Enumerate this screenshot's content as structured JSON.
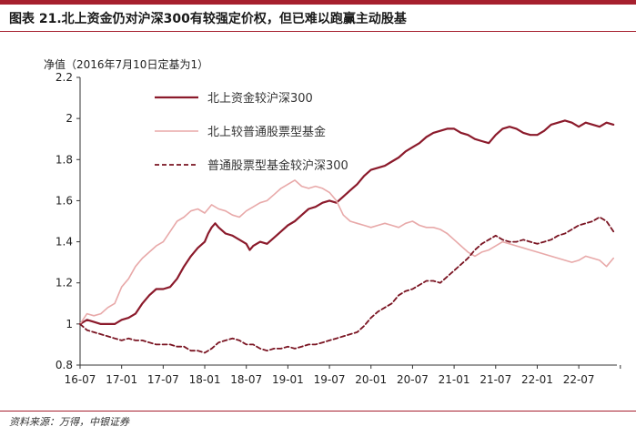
{
  "figure": {
    "title": "图表 21.北上资金仍对沪深300有较强定价权，但已难以跑赢主动股基",
    "source": "资料来源：万得，中银证券"
  },
  "colors": {
    "accent": "#a6202e",
    "series_main": "#8b1a2b",
    "series_fund": "#e8a9a9",
    "series_dashed": "#7a1422"
  },
  "chart_data": {
    "type": "line",
    "ylabel": "净值（2016年7月10日定基为1）",
    "ylim": [
      0.8,
      2.2
    ],
    "yticks": [
      0.8,
      1,
      1.2,
      1.4,
      1.6,
      1.8,
      2,
      2.2
    ],
    "ytick_labels": [
      "0.8",
      "1",
      "1.2",
      "1.4",
      "1.6",
      "1.8",
      "2",
      "2.2"
    ],
    "x_months": [
      0,
      6,
      12,
      18,
      24,
      30,
      36,
      42,
      48,
      54,
      60,
      66,
      72,
      78
    ],
    "xtick_labels": [
      "16-07",
      "17-01",
      "17-07",
      "18-01",
      "18-07",
      "19-01",
      "19-07",
      "20-01",
      "20-07",
      "21-01",
      "21-07",
      "22-01",
      "22-07"
    ],
    "xtick_months": [
      0,
      6,
      12,
      18,
      24,
      30,
      36,
      42,
      48,
      54,
      60,
      66,
      72
    ],
    "xlim_months": [
      0,
      77.5
    ],
    "legend_placement": "top-left",
    "series": [
      {
        "name": "北上资金较沪深300",
        "style": "solid",
        "points": [
          [
            0,
            1.0
          ],
          [
            1,
            1.02
          ],
          [
            2,
            1.01
          ],
          [
            3,
            1.0
          ],
          [
            4,
            1.0
          ],
          [
            5,
            1.0
          ],
          [
            6,
            1.02
          ],
          [
            7,
            1.03
          ],
          [
            8,
            1.05
          ],
          [
            9,
            1.1
          ],
          [
            10,
            1.14
          ],
          [
            11,
            1.17
          ],
          [
            12,
            1.17
          ],
          [
            13,
            1.18
          ],
          [
            14,
            1.22
          ],
          [
            15,
            1.28
          ],
          [
            16,
            1.33
          ],
          [
            17,
            1.37
          ],
          [
            18,
            1.4
          ],
          [
            18.5,
            1.44
          ],
          [
            19,
            1.47
          ],
          [
            19.5,
            1.49
          ],
          [
            20,
            1.47
          ],
          [
            21,
            1.44
          ],
          [
            22,
            1.43
          ],
          [
            23,
            1.41
          ],
          [
            24,
            1.39
          ],
          [
            24.5,
            1.36
          ],
          [
            25,
            1.38
          ],
          [
            26,
            1.4
          ],
          [
            27,
            1.39
          ],
          [
            28,
            1.42
          ],
          [
            29,
            1.45
          ],
          [
            30,
            1.48
          ],
          [
            31,
            1.5
          ],
          [
            32,
            1.53
          ],
          [
            33,
            1.56
          ],
          [
            34,
            1.57
          ],
          [
            35,
            1.59
          ],
          [
            36,
            1.6
          ],
          [
            37,
            1.59
          ],
          [
            38,
            1.62
          ],
          [
            39,
            1.65
          ],
          [
            40,
            1.68
          ],
          [
            41,
            1.72
          ],
          [
            42,
            1.75
          ],
          [
            43,
            1.76
          ],
          [
            44,
            1.77
          ],
          [
            45,
            1.79
          ],
          [
            46,
            1.81
          ],
          [
            47,
            1.84
          ],
          [
            48,
            1.86
          ],
          [
            49,
            1.88
          ],
          [
            50,
            1.91
          ],
          [
            51,
            1.93
          ],
          [
            52,
            1.94
          ],
          [
            53,
            1.95
          ],
          [
            54,
            1.95
          ],
          [
            55,
            1.93
          ],
          [
            56,
            1.92
          ],
          [
            57,
            1.9
          ],
          [
            58,
            1.89
          ],
          [
            59,
            1.88
          ],
          [
            60,
            1.92
          ],
          [
            61,
            1.95
          ],
          [
            62,
            1.96
          ],
          [
            63,
            1.95
          ],
          [
            64,
            1.93
          ],
          [
            65,
            1.92
          ],
          [
            66,
            1.92
          ],
          [
            67,
            1.94
          ],
          [
            68,
            1.97
          ],
          [
            69,
            1.98
          ],
          [
            70,
            1.99
          ],
          [
            71,
            1.98
          ],
          [
            72,
            1.96
          ],
          [
            73,
            1.98
          ],
          [
            74,
            1.97
          ],
          [
            75,
            1.96
          ],
          [
            76,
            1.98
          ],
          [
            77,
            1.97
          ]
        ]
      },
      {
        "name": "北上较普通股票型基金",
        "style": "solid",
        "points": [
          [
            0,
            1.0
          ],
          [
            1,
            1.05
          ],
          [
            2,
            1.04
          ],
          [
            3,
            1.05
          ],
          [
            4,
            1.08
          ],
          [
            5,
            1.1
          ],
          [
            6,
            1.18
          ],
          [
            7,
            1.22
          ],
          [
            8,
            1.28
          ],
          [
            9,
            1.32
          ],
          [
            10,
            1.35
          ],
          [
            11,
            1.38
          ],
          [
            12,
            1.4
          ],
          [
            13,
            1.45
          ],
          [
            14,
            1.5
          ],
          [
            15,
            1.52
          ],
          [
            16,
            1.55
          ],
          [
            17,
            1.56
          ],
          [
            18,
            1.54
          ],
          [
            18.5,
            1.56
          ],
          [
            19,
            1.58
          ],
          [
            20,
            1.56
          ],
          [
            21,
            1.55
          ],
          [
            22,
            1.53
          ],
          [
            23,
            1.52
          ],
          [
            24,
            1.55
          ],
          [
            25,
            1.57
          ],
          [
            26,
            1.59
          ],
          [
            27,
            1.6
          ],
          [
            28,
            1.63
          ],
          [
            29,
            1.66
          ],
          [
            30,
            1.68
          ],
          [
            31,
            1.7
          ],
          [
            32,
            1.67
          ],
          [
            33,
            1.66
          ],
          [
            34,
            1.67
          ],
          [
            35,
            1.66
          ],
          [
            36,
            1.64
          ],
          [
            37,
            1.6
          ],
          [
            38,
            1.53
          ],
          [
            39,
            1.5
          ],
          [
            40,
            1.49
          ],
          [
            41,
            1.48
          ],
          [
            42,
            1.47
          ],
          [
            43,
            1.48
          ],
          [
            44,
            1.49
          ],
          [
            45,
            1.48
          ],
          [
            46,
            1.47
          ],
          [
            47,
            1.49
          ],
          [
            48,
            1.5
          ],
          [
            49,
            1.48
          ],
          [
            50,
            1.47
          ],
          [
            51,
            1.47
          ],
          [
            52,
            1.46
          ],
          [
            53,
            1.44
          ],
          [
            54,
            1.41
          ],
          [
            55,
            1.38
          ],
          [
            56,
            1.35
          ],
          [
            57,
            1.33
          ],
          [
            58,
            1.35
          ],
          [
            59,
            1.36
          ],
          [
            60,
            1.38
          ],
          [
            61,
            1.4
          ],
          [
            62,
            1.39
          ],
          [
            63,
            1.38
          ],
          [
            64,
            1.37
          ],
          [
            65,
            1.36
          ],
          [
            66,
            1.35
          ],
          [
            67,
            1.34
          ],
          [
            68,
            1.33
          ],
          [
            69,
            1.32
          ],
          [
            70,
            1.31
          ],
          [
            71,
            1.3
          ],
          [
            72,
            1.31
          ],
          [
            73,
            1.33
          ],
          [
            74,
            1.32
          ],
          [
            75,
            1.31
          ],
          [
            76,
            1.28
          ],
          [
            77,
            1.32
          ]
        ]
      },
      {
        "name": "普通股票型基金较沪深300",
        "style": "dashed",
        "points": [
          [
            0,
            1.0
          ],
          [
            1,
            0.97
          ],
          [
            2,
            0.96
          ],
          [
            3,
            0.95
          ],
          [
            4,
            0.94
          ],
          [
            5,
            0.93
          ],
          [
            6,
            0.92
          ],
          [
            7,
            0.93
          ],
          [
            8,
            0.92
          ],
          [
            9,
            0.92
          ],
          [
            10,
            0.91
          ],
          [
            11,
            0.9
          ],
          [
            12,
            0.9
          ],
          [
            13,
            0.9
          ],
          [
            14,
            0.89
          ],
          [
            15,
            0.89
          ],
          [
            16,
            0.87
          ],
          [
            17,
            0.87
          ],
          [
            18,
            0.86
          ],
          [
            19,
            0.88
          ],
          [
            20,
            0.91
          ],
          [
            21,
            0.92
          ],
          [
            22,
            0.93
          ],
          [
            23,
            0.92
          ],
          [
            24,
            0.9
          ],
          [
            25,
            0.9
          ],
          [
            26,
            0.88
          ],
          [
            27,
            0.87
          ],
          [
            28,
            0.88
          ],
          [
            29,
            0.88
          ],
          [
            30,
            0.89
          ],
          [
            31,
            0.88
          ],
          [
            32,
            0.89
          ],
          [
            33,
            0.9
          ],
          [
            34,
            0.9
          ],
          [
            35,
            0.91
          ],
          [
            36,
            0.92
          ],
          [
            37,
            0.93
          ],
          [
            38,
            0.94
          ],
          [
            39,
            0.95
          ],
          [
            40,
            0.96
          ],
          [
            41,
            0.99
          ],
          [
            42,
            1.03
          ],
          [
            43,
            1.06
          ],
          [
            44,
            1.08
          ],
          [
            45,
            1.1
          ],
          [
            46,
            1.14
          ],
          [
            47,
            1.16
          ],
          [
            48,
            1.17
          ],
          [
            49,
            1.19
          ],
          [
            50,
            1.21
          ],
          [
            51,
            1.21
          ],
          [
            52,
            1.2
          ],
          [
            53,
            1.23
          ],
          [
            54,
            1.26
          ],
          [
            55,
            1.29
          ],
          [
            56,
            1.32
          ],
          [
            57,
            1.36
          ],
          [
            58,
            1.39
          ],
          [
            59,
            1.41
          ],
          [
            60,
            1.43
          ],
          [
            61,
            1.41
          ],
          [
            62,
            1.4
          ],
          [
            63,
            1.4
          ],
          [
            64,
            1.41
          ],
          [
            65,
            1.4
          ],
          [
            66,
            1.39
          ],
          [
            67,
            1.4
          ],
          [
            68,
            1.41
          ],
          [
            69,
            1.43
          ],
          [
            70,
            1.44
          ],
          [
            71,
            1.46
          ],
          [
            72,
            1.48
          ],
          [
            73,
            1.49
          ],
          [
            74,
            1.5
          ],
          [
            75,
            1.52
          ],
          [
            76,
            1.5
          ],
          [
            77,
            1.45
          ]
        ]
      }
    ]
  }
}
